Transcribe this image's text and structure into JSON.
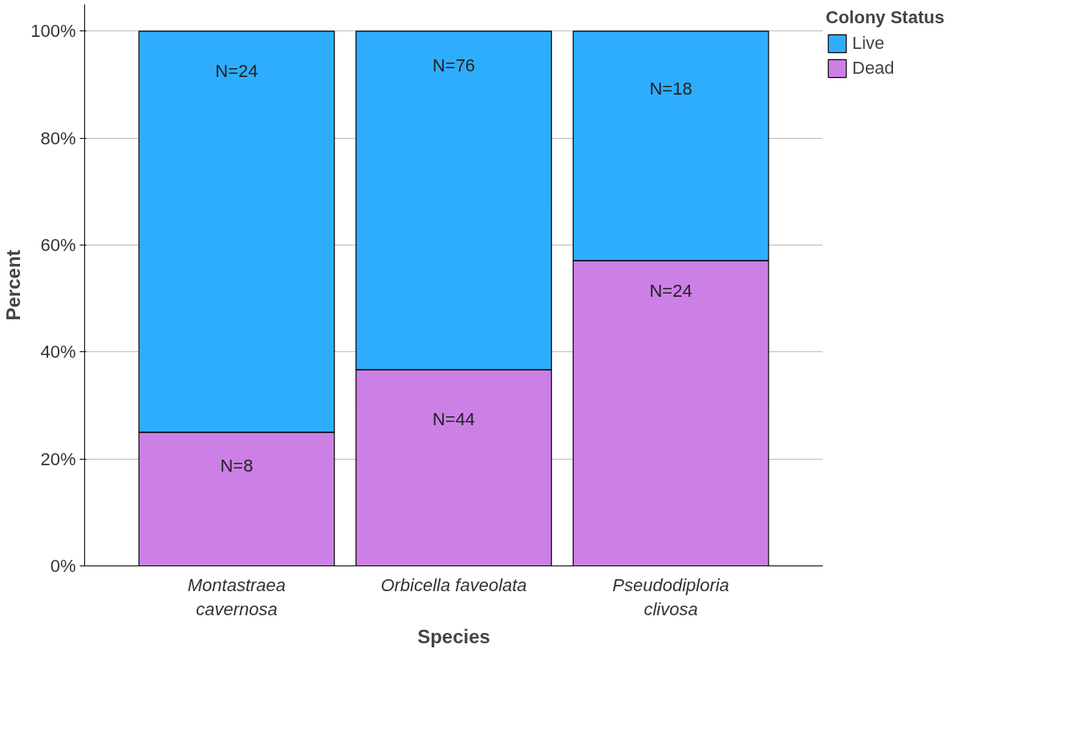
{
  "chart_data": {
    "type": "bar",
    "stacked": true,
    "xlabel": "Species",
    "ylabel": "Percent",
    "legend_title": "Colony Status",
    "legend": "top right",
    "grid": "y",
    "categories": [
      "Montastraea cavernosa",
      "Orbicella faveolata",
      "Pseudodiploria clivosa"
    ],
    "ylim": [
      0,
      105
    ],
    "yticks": [
      {
        "value": 0,
        "label": "0%"
      },
      {
        "value": 20,
        "label": "20%"
      },
      {
        "value": 40,
        "label": "40%"
      },
      {
        "value": 60,
        "label": "60%"
      },
      {
        "value": 80,
        "label": "80%"
      },
      {
        "value": 100,
        "label": "100%"
      }
    ],
    "series": [
      {
        "name": "Dead",
        "color": "#cc80e6",
        "values": [
          25,
          36.7,
          57.1
        ]
      },
      {
        "name": "Live",
        "color": "#2fadfd",
        "values": [
          75,
          63.3,
          42.9
        ]
      }
    ],
    "annotations": [
      "N=8",
      "N=44",
      "N=24",
      "N=24",
      "N=76",
      "N=18"
    ]
  }
}
